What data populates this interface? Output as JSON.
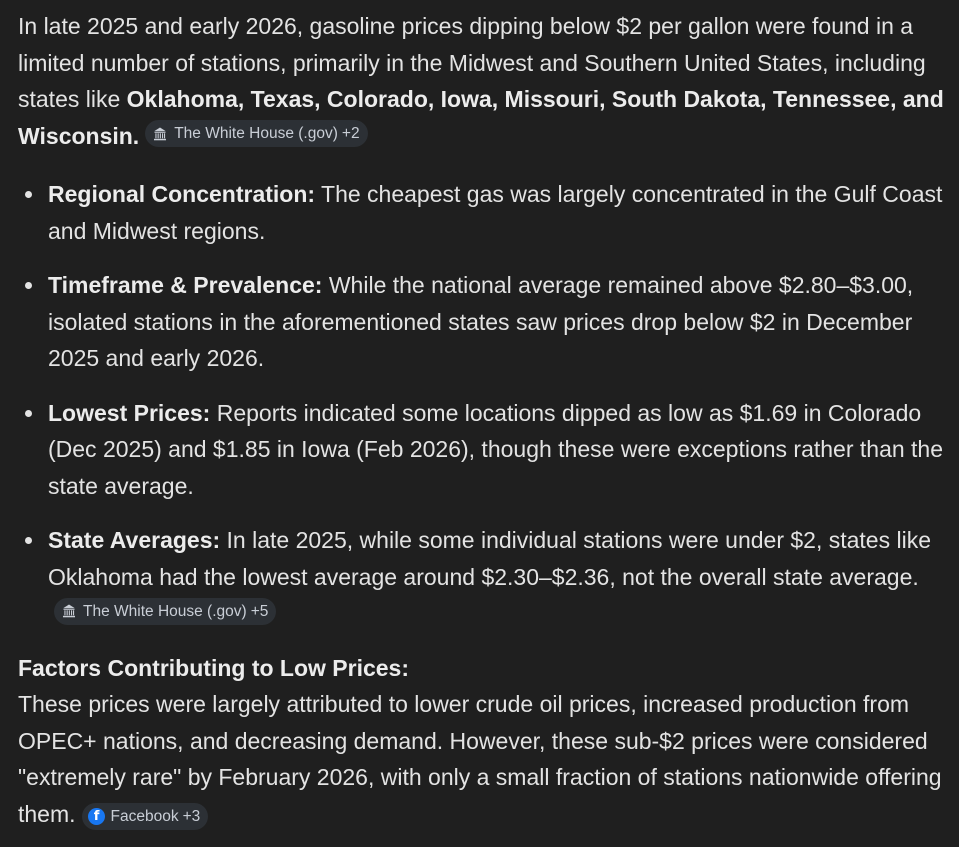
{
  "intro": {
    "text_before": "In late 2025 and early 2026, gasoline prices dipping below $2 per gallon were found in a limited number of stations, primarily in the Midwest and Southern United States, including states like ",
    "bold": "Oklahoma, Texas, Colorado, Iowa, Missouri, South Dakota, Tennessee, and Wisconsin.",
    "citation": {
      "source": "The White House (.gov)",
      "count": "+2",
      "icon": "white-house-icon"
    }
  },
  "bullets": [
    {
      "heading": "Regional Concentration:",
      "text": " The cheapest gas was largely concentrated in the Gulf Coast and Midwest regions."
    },
    {
      "heading": "Timeframe & Prevalence:",
      "text": " While the national average remained above $2.80–$3.00, isolated stations in the aforementioned states saw prices drop below $2 in December 2025 and early 2026."
    },
    {
      "heading": "Lowest Prices:",
      "text": " Reports indicated some locations dipped as low as $1.69 in Colorado (Dec 2025) and $1.85 in Iowa (Feb 2026), though these were exceptions rather than the state average."
    },
    {
      "heading": "State Averages:",
      "text": " In late 2025, while some individual stations were under $2, states like Oklahoma had the lowest average around $2.30–$2.36, not the overall state average.",
      "citation": {
        "source": "The White House (.gov)",
        "count": "+5",
        "icon": "white-house-icon"
      }
    }
  ],
  "factors": {
    "heading": "Factors Contributing to Low Prices:",
    "text": "These prices were largely attributed to lower crude oil prices, increased production from OPEC+ nations, and decreasing demand. However, these sub-$2 prices were considered \"extremely rare\" by February 2026, with only a small fraction of stations nationwide offering them.",
    "citation": {
      "source": "Facebook",
      "count": "+3",
      "icon": "facebook-icon"
    }
  },
  "colors": {
    "background": "#1f1f1f",
    "text": "#e3e3e3",
    "chip_background": "#2c3035",
    "facebook_blue": "#1877f2"
  }
}
